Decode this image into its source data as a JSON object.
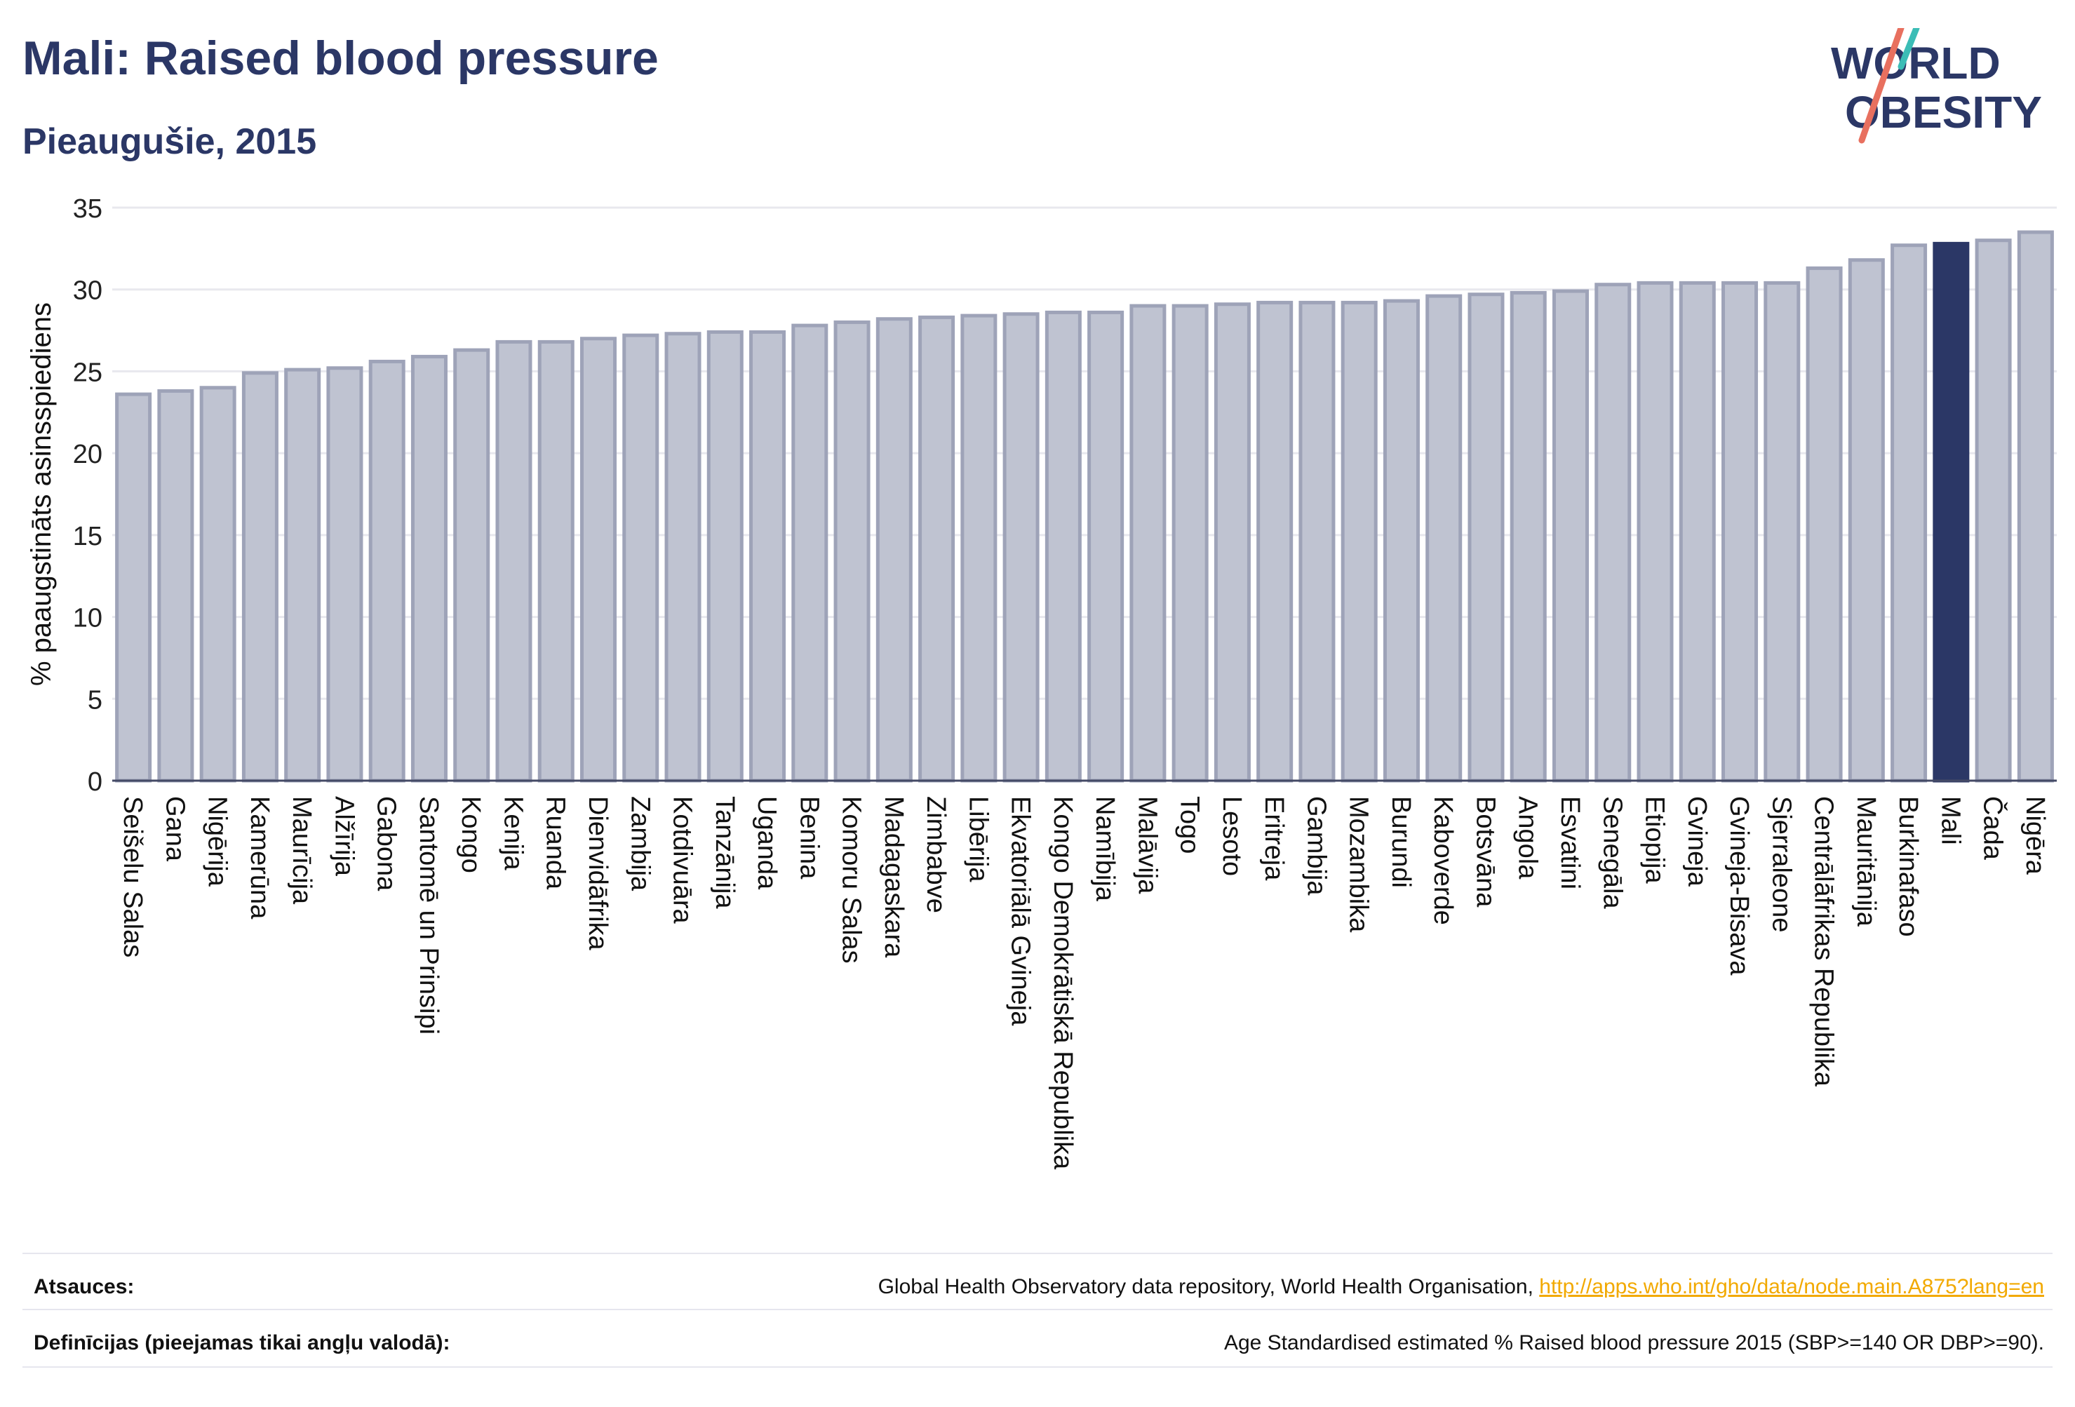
{
  "header": {
    "title": "Mali: Raised blood pressure",
    "subtitle": "Pieaugušie, 2015"
  },
  "logo": {
    "line1": "WORLD",
    "line2": "OBESITY"
  },
  "chart_data": {
    "type": "bar",
    "ylabel": "% paaugstināts asinsspiediens",
    "ylim": [
      0,
      35
    ],
    "yticks": [
      0,
      5,
      10,
      15,
      20,
      25,
      30,
      35
    ],
    "grid": true,
    "highlight": "Mali",
    "colors": {
      "bar": "#bfc3d1",
      "bar_edge": "#9ea3b8",
      "highlight": "#2b3766",
      "grid": "#e8e8ee"
    },
    "categories": [
      "Seišelu Salas",
      "Gana",
      "Nigērija",
      "Kamerūna",
      "Maurīcija",
      "Alžīrija",
      "Gabona",
      "Santomē un Prinsipi",
      "Kongo",
      "Kenija",
      "Ruanda",
      "Dienvidāfrika",
      "Zambija",
      "Kotdivuāra",
      "Tanzānija",
      "Uganda",
      "Benina",
      "Komoru Salas",
      "Madagaskara",
      "Zimbabve",
      "Libērija",
      "Ekvatoriālā Gvineja",
      "Kongo Demokrātiskā Republika",
      "Namībija",
      "Malāvija",
      "Togo",
      "Lesoto",
      "Eritreja",
      "Gambija",
      "Mozambika",
      "Burundi",
      "Kaboverde",
      "Botsvāna",
      "Angola",
      "Esvatini",
      "Senegāla",
      "Etiopija",
      "Gvineja",
      "Gvineja-Bisava",
      "Sjerraleone",
      "Centrālāfrikas Republika",
      "Mauritānija",
      "Burkinafaso",
      "Mali",
      "Čada",
      "Nigēra"
    ],
    "values": [
      23.6,
      23.8,
      24.0,
      24.9,
      25.1,
      25.2,
      25.6,
      25.9,
      26.3,
      26.8,
      26.8,
      27.0,
      27.2,
      27.3,
      27.4,
      27.4,
      27.8,
      28.0,
      28.2,
      28.3,
      28.4,
      28.5,
      28.6,
      28.6,
      29.0,
      29.0,
      29.1,
      29.2,
      29.2,
      29.2,
      29.3,
      29.6,
      29.7,
      29.8,
      29.9,
      30.3,
      30.4,
      30.4,
      30.4,
      30.4,
      31.3,
      31.8,
      32.7,
      32.8,
      33.0,
      33.5
    ]
  },
  "footer": {
    "sources_label": "Atsauces:",
    "sources_text": "Global Health Observatory data repository, World Health Organisation, ",
    "sources_link": "http://apps.who.int/gho/data/node.main.A875?lang=en",
    "definitions_label": "Definīcijas (pieejamas tikai angļu valodā):",
    "definitions_text": "Age Standardised estimated % Raised blood pressure 2015 (SBP>=140 OR DBP>=90)."
  }
}
